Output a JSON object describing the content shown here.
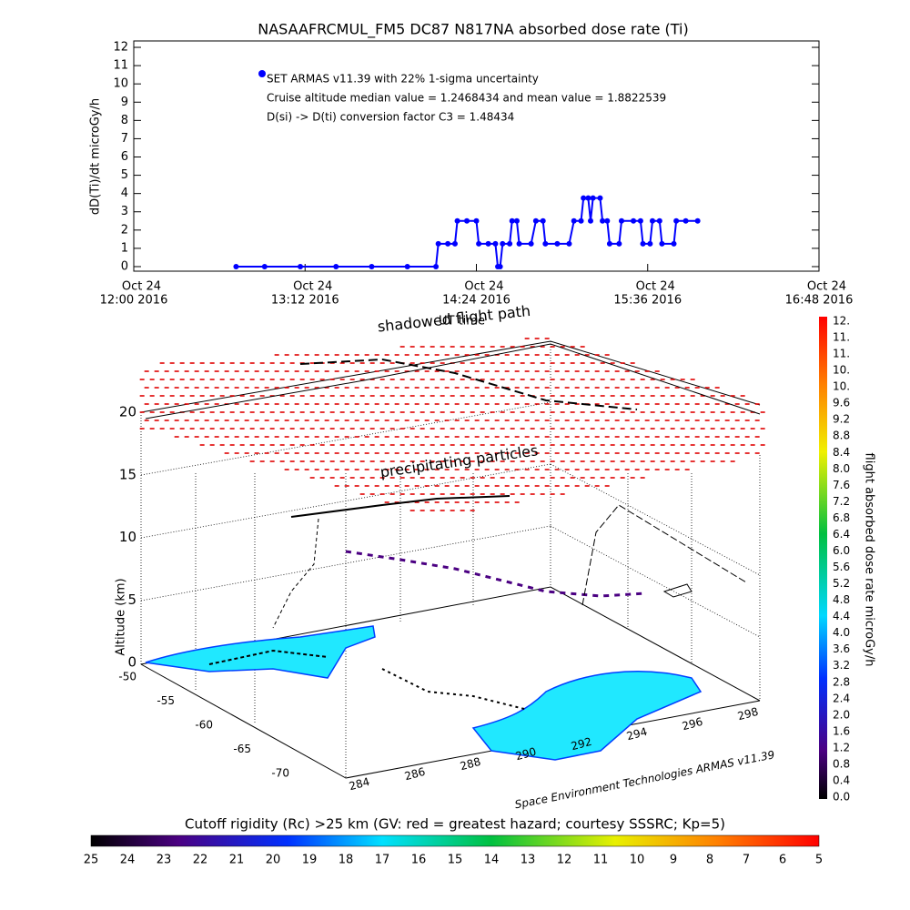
{
  "chart_data": {
    "type": "line",
    "title": "NASAAFRCMUL_FM5 DC87 N817NA absorbed dose rate (Ti)",
    "ylabel": "dD(Ti)/dt microGy/h",
    "annotations": [
      "Cruise altitude median value = 1.2468434 and mean value = 1.8822539",
      "D(si) -> D(ti) conversion factor C3 = 1.48434"
    ],
    "x": [
      "2016-10-24T12:43",
      "2016-10-24T12:55",
      "2016-10-24T13:10",
      "2016-10-24T13:25",
      "2016-10-24T13:40",
      "2016-10-24T13:55",
      "2016-10-24T14:07",
      "2016-10-24T14:08",
      "2016-10-24T14:12",
      "2016-10-24T14:15",
      "2016-10-24T14:16",
      "2016-10-24T14:20",
      "2016-10-24T14:24",
      "2016-10-24T14:25",
      "2016-10-24T14:29",
      "2016-10-24T14:32",
      "2016-10-24T14:33",
      "2016-10-24T14:34",
      "2016-10-24T14:35",
      "2016-10-24T14:38",
      "2016-10-24T14:39",
      "2016-10-24T14:41",
      "2016-10-24T14:42",
      "2016-10-24T14:47",
      "2016-10-24T14:49",
      "2016-10-24T14:52",
      "2016-10-24T14:53",
      "2016-10-24T14:58",
      "2016-10-24T15:03",
      "2016-10-24T15:05",
      "2016-10-24T15:08",
      "2016-10-24T15:09",
      "2016-10-24T15:11",
      "2016-10-24T15:12",
      "2016-10-24T15:13",
      "2016-10-24T15:16",
      "2016-10-24T15:17",
      "2016-10-24T15:19",
      "2016-10-24T15:20",
      "2016-10-24T15:24",
      "2016-10-24T15:25",
      "2016-10-24T15:30",
      "2016-10-24T15:33",
      "2016-10-24T15:34",
      "2016-10-24T15:37",
      "2016-10-24T15:38",
      "2016-10-24T15:41",
      "2016-10-24T15:42",
      "2016-10-24T15:47",
      "2016-10-24T15:48",
      "2016-10-24T15:52",
      "2016-10-24T15:57"
    ],
    "series": [
      {
        "name": "SET ARMAS v11.39 with 22% 1-sigma uncertainty",
        "color": "#0000ff",
        "values": [
          0,
          0,
          0,
          0,
          0,
          0,
          0,
          1.25,
          1.25,
          1.25,
          2.5,
          2.5,
          2.5,
          1.25,
          1.25,
          1.25,
          0,
          0,
          1.25,
          1.25,
          2.5,
          2.5,
          1.25,
          1.25,
          2.5,
          2.5,
          1.25,
          1.25,
          1.25,
          2.5,
          2.5,
          3.75,
          3.75,
          2.5,
          3.75,
          3.75,
          2.5,
          2.5,
          1.25,
          1.25,
          2.5,
          2.5,
          2.5,
          1.25,
          1.25,
          2.5,
          2.5,
          1.25,
          1.25,
          2.5,
          2.5,
          2.5
        ]
      }
    ],
    "xlim": [
      "2016-10-24T12:00",
      "2016-10-24T16:48"
    ],
    "xticks": [
      {
        "value": "2016-10-24T12:00",
        "label": [
          "Oct 24",
          "12:00 2016"
        ]
      },
      {
        "value": "2016-10-24T13:12",
        "label": [
          "Oct 24",
          "13:12 2016"
        ]
      },
      {
        "value": "2016-10-24T14:24",
        "label": [
          "Oct 24",
          "14:24 2016"
        ]
      },
      {
        "value": "2016-10-24T15:36",
        "label": [
          "Oct 24",
          "15:36 2016"
        ]
      },
      {
        "value": "2016-10-24T16:48",
        "label": [
          "Oct 24",
          "16:48 2016"
        ]
      }
    ],
    "ylim": [
      -0.25,
      12.35
    ],
    "yticks": [
      0,
      1,
      2,
      3,
      4,
      5,
      6,
      7,
      8,
      9,
      10,
      11,
      12
    ]
  },
  "panel3d": {
    "zlabel": "Altitude (km)",
    "zticks": [
      0,
      5,
      10,
      15,
      20
    ],
    "lat_ticks": [
      -50,
      -55,
      -60,
      -65,
      -70
    ],
    "lon_ticks": [
      284,
      286,
      288,
      290,
      292,
      294,
      296,
      298
    ],
    "labels": {
      "shadowed": "shadowed flight path",
      "ut": "UT time",
      "particles": "precipitating particles",
      "credit": "Space Environment Technologies ARMAS v11.39"
    }
  },
  "colorbar_right": {
    "label": "flight absorbed dose rate microGy/h",
    "ticks": [
      "0.0",
      "0.4",
      "0.8",
      "1.2",
      "1.6",
      "2.0",
      "2.4",
      "2.8",
      "3.2",
      "3.6",
      "4.0",
      "4.4",
      "4.8",
      "5.2",
      "5.6",
      "6.0",
      "6.4",
      "6.8",
      "7.2",
      "7.6",
      "8.0",
      "8.4",
      "8.8",
      "9.2",
      "9.6",
      "10.",
      "10.",
      "11.",
      "11.",
      "12."
    ]
  },
  "colorbar_bottom": {
    "label": "Cutoff rigidity (Rc) >25 km (GV: red = greatest hazard; courtesy SSSRC; Kp=5)",
    "ticks": [
      25,
      24,
      23,
      22,
      21,
      20,
      19,
      18,
      17,
      16,
      15,
      14,
      13,
      12,
      11,
      10,
      9,
      8,
      7,
      6,
      5
    ]
  }
}
